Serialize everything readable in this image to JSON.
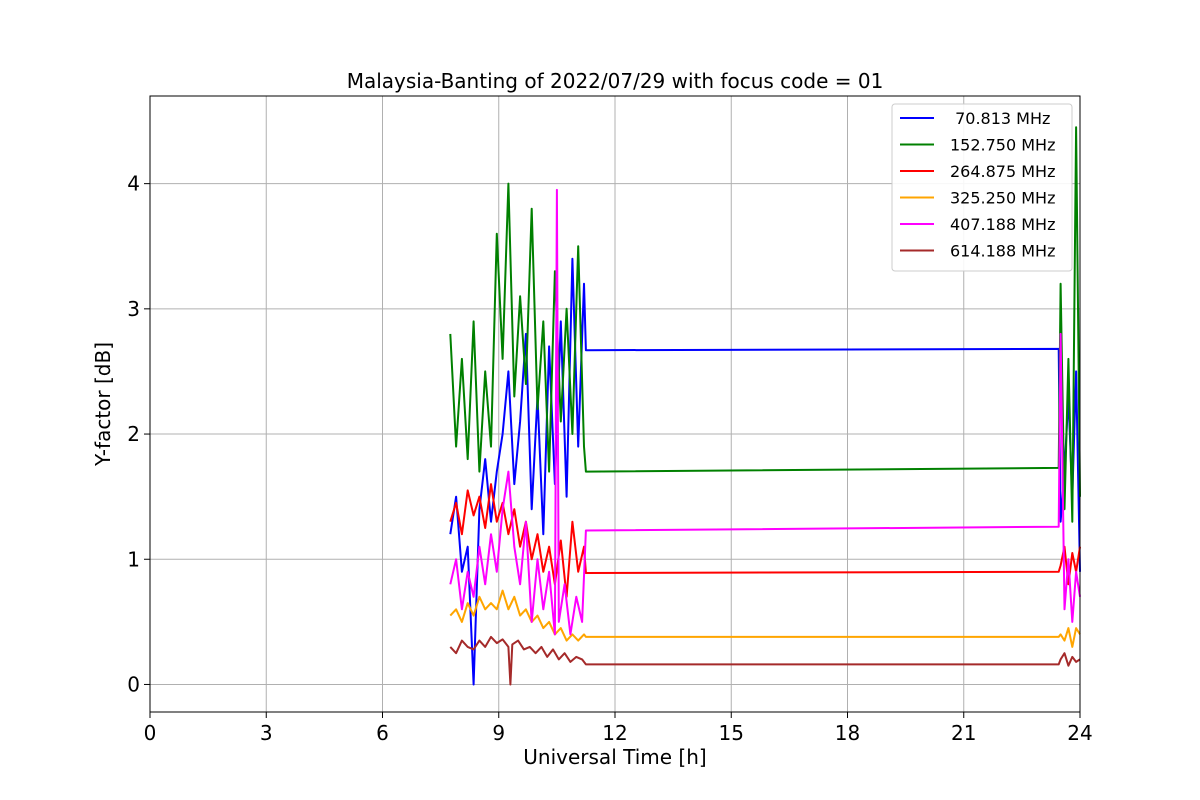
{
  "chart_data": {
    "type": "line",
    "title": "Malaysia-Banting of 2022/07/29 with focus code = 01",
    "xlabel": "Universal Time [h]",
    "ylabel": "Y-factor [dB]",
    "xlim": [
      0,
      24
    ],
    "ylim": [
      -0.22,
      4.7
    ],
    "xticks": [
      0,
      3,
      6,
      9,
      12,
      15,
      18,
      21,
      24
    ],
    "xtick_labels": [
      "0",
      "3",
      "6",
      "9",
      "12",
      "15",
      "18",
      "21",
      "24"
    ],
    "yticks": [
      0,
      1,
      2,
      3,
      4
    ],
    "ytick_labels": [
      "0",
      "1",
      "2",
      "3",
      "4"
    ],
    "grid": true,
    "legend_position": "top-right",
    "series": [
      {
        "name": " 70.813 MHz",
        "color": "#0000ff",
        "x": [
          7.75,
          7.9,
          8.05,
          8.2,
          8.35,
          8.5,
          8.65,
          8.8,
          8.95,
          9.1,
          9.25,
          9.4,
          9.55,
          9.7,
          9.85,
          10.0,
          10.15,
          10.3,
          10.45,
          10.6,
          10.75,
          10.9,
          11.05,
          11.2,
          11.25,
          23.45,
          23.5,
          23.6,
          23.7,
          23.8,
          23.9,
          24.0
        ],
        "y": [
          1.2,
          1.5,
          0.9,
          1.1,
          0.0,
          1.4,
          1.8,
          1.3,
          1.7,
          2.0,
          2.5,
          1.6,
          2.1,
          2.8,
          1.4,
          2.3,
          1.2,
          2.7,
          1.6,
          2.9,
          1.5,
          3.4,
          1.9,
          3.2,
          2.67,
          2.68,
          1.3,
          1.7,
          2.3,
          1.5,
          2.5,
          0.9
        ]
      },
      {
        "name": "152.750 MHz",
        "color": "#008000",
        "x": [
          7.75,
          7.9,
          8.05,
          8.2,
          8.35,
          8.5,
          8.65,
          8.8,
          8.95,
          9.1,
          9.25,
          9.4,
          9.55,
          9.7,
          9.85,
          10.0,
          10.15,
          10.3,
          10.45,
          10.6,
          10.75,
          10.9,
          11.05,
          11.2,
          11.25,
          23.45,
          23.5,
          23.6,
          23.7,
          23.8,
          23.9,
          24.0
        ],
        "y": [
          2.8,
          1.9,
          2.6,
          1.8,
          2.9,
          1.7,
          2.5,
          1.9,
          3.6,
          2.6,
          4.0,
          2.3,
          3.1,
          2.4,
          3.8,
          2.2,
          2.9,
          1.7,
          3.3,
          2.1,
          3.0,
          2.0,
          3.5,
          1.9,
          1.7,
          1.73,
          3.2,
          1.4,
          2.6,
          1.3,
          4.45,
          1.5
        ]
      },
      {
        "name": "264.875 MHz",
        "color": "#ff0000",
        "x": [
          7.75,
          7.9,
          8.05,
          8.2,
          8.35,
          8.5,
          8.65,
          8.8,
          8.95,
          9.1,
          9.25,
          9.4,
          9.55,
          9.7,
          9.85,
          10.0,
          10.15,
          10.3,
          10.45,
          10.6,
          10.75,
          10.9,
          11.05,
          11.2,
          11.25,
          23.45,
          23.5,
          23.6,
          23.7,
          23.8,
          23.9,
          24.0
        ],
        "y": [
          1.3,
          1.45,
          1.2,
          1.55,
          1.35,
          1.5,
          1.25,
          1.6,
          1.3,
          1.45,
          1.2,
          1.4,
          1.1,
          1.3,
          1.0,
          1.2,
          0.9,
          1.1,
          0.8,
          1.15,
          0.7,
          1.3,
          0.9,
          1.1,
          0.89,
          0.9,
          0.95,
          1.1,
          0.8,
          1.05,
          0.9,
          1.1
        ]
      },
      {
        "name": "325.250 MHz",
        "color": "#ffa500",
        "x": [
          7.75,
          7.9,
          8.05,
          8.2,
          8.35,
          8.5,
          8.65,
          8.8,
          8.95,
          9.1,
          9.25,
          9.4,
          9.55,
          9.7,
          9.85,
          10.0,
          10.15,
          10.3,
          10.45,
          10.6,
          10.75,
          10.9,
          11.05,
          11.2,
          11.25,
          23.45,
          23.5,
          23.6,
          23.7,
          23.8,
          23.9,
          24.0
        ],
        "y": [
          0.55,
          0.6,
          0.5,
          0.65,
          0.55,
          0.7,
          0.6,
          0.65,
          0.6,
          0.75,
          0.6,
          0.7,
          0.55,
          0.6,
          0.5,
          0.55,
          0.45,
          0.5,
          0.4,
          0.45,
          0.35,
          0.4,
          0.35,
          0.4,
          0.38,
          0.38,
          0.4,
          0.35,
          0.45,
          0.3,
          0.45,
          0.4
        ]
      },
      {
        "name": "407.188 MHz",
        "color": "#ff00ff",
        "x": [
          7.75,
          7.9,
          8.05,
          8.2,
          8.35,
          8.5,
          8.65,
          8.8,
          8.95,
          9.1,
          9.25,
          9.4,
          9.55,
          9.7,
          9.85,
          10.0,
          10.15,
          10.3,
          10.45,
          10.5,
          10.55,
          10.7,
          10.85,
          11.0,
          11.15,
          11.25,
          23.45,
          23.5,
          23.6,
          23.7,
          23.8,
          23.9,
          24.0
        ],
        "y": [
          0.8,
          1.0,
          0.6,
          0.9,
          0.7,
          1.1,
          0.8,
          1.2,
          0.9,
          1.4,
          1.7,
          1.1,
          0.8,
          1.3,
          0.5,
          1.0,
          0.6,
          0.9,
          0.4,
          3.95,
          0.5,
          0.8,
          0.4,
          0.7,
          0.5,
          1.23,
          1.26,
          2.8,
          0.6,
          1.0,
          0.5,
          0.9,
          0.7
        ]
      },
      {
        "name": "614.188 MHz",
        "color": "#a52a2a",
        "x": [
          7.75,
          7.9,
          8.05,
          8.2,
          8.35,
          8.5,
          8.65,
          8.8,
          8.95,
          9.1,
          9.25,
          9.3,
          9.35,
          9.5,
          9.65,
          9.8,
          9.95,
          10.1,
          10.25,
          10.4,
          10.55,
          10.7,
          10.85,
          11.0,
          11.15,
          11.25,
          23.45,
          23.5,
          23.6,
          23.7,
          23.8,
          23.9,
          24.0
        ],
        "y": [
          0.3,
          0.25,
          0.35,
          0.3,
          0.28,
          0.35,
          0.3,
          0.38,
          0.33,
          0.36,
          0.3,
          0.0,
          0.32,
          0.35,
          0.28,
          0.3,
          0.25,
          0.3,
          0.22,
          0.28,
          0.2,
          0.25,
          0.18,
          0.22,
          0.2,
          0.16,
          0.16,
          0.2,
          0.25,
          0.15,
          0.22,
          0.18,
          0.2
        ]
      }
    ]
  }
}
